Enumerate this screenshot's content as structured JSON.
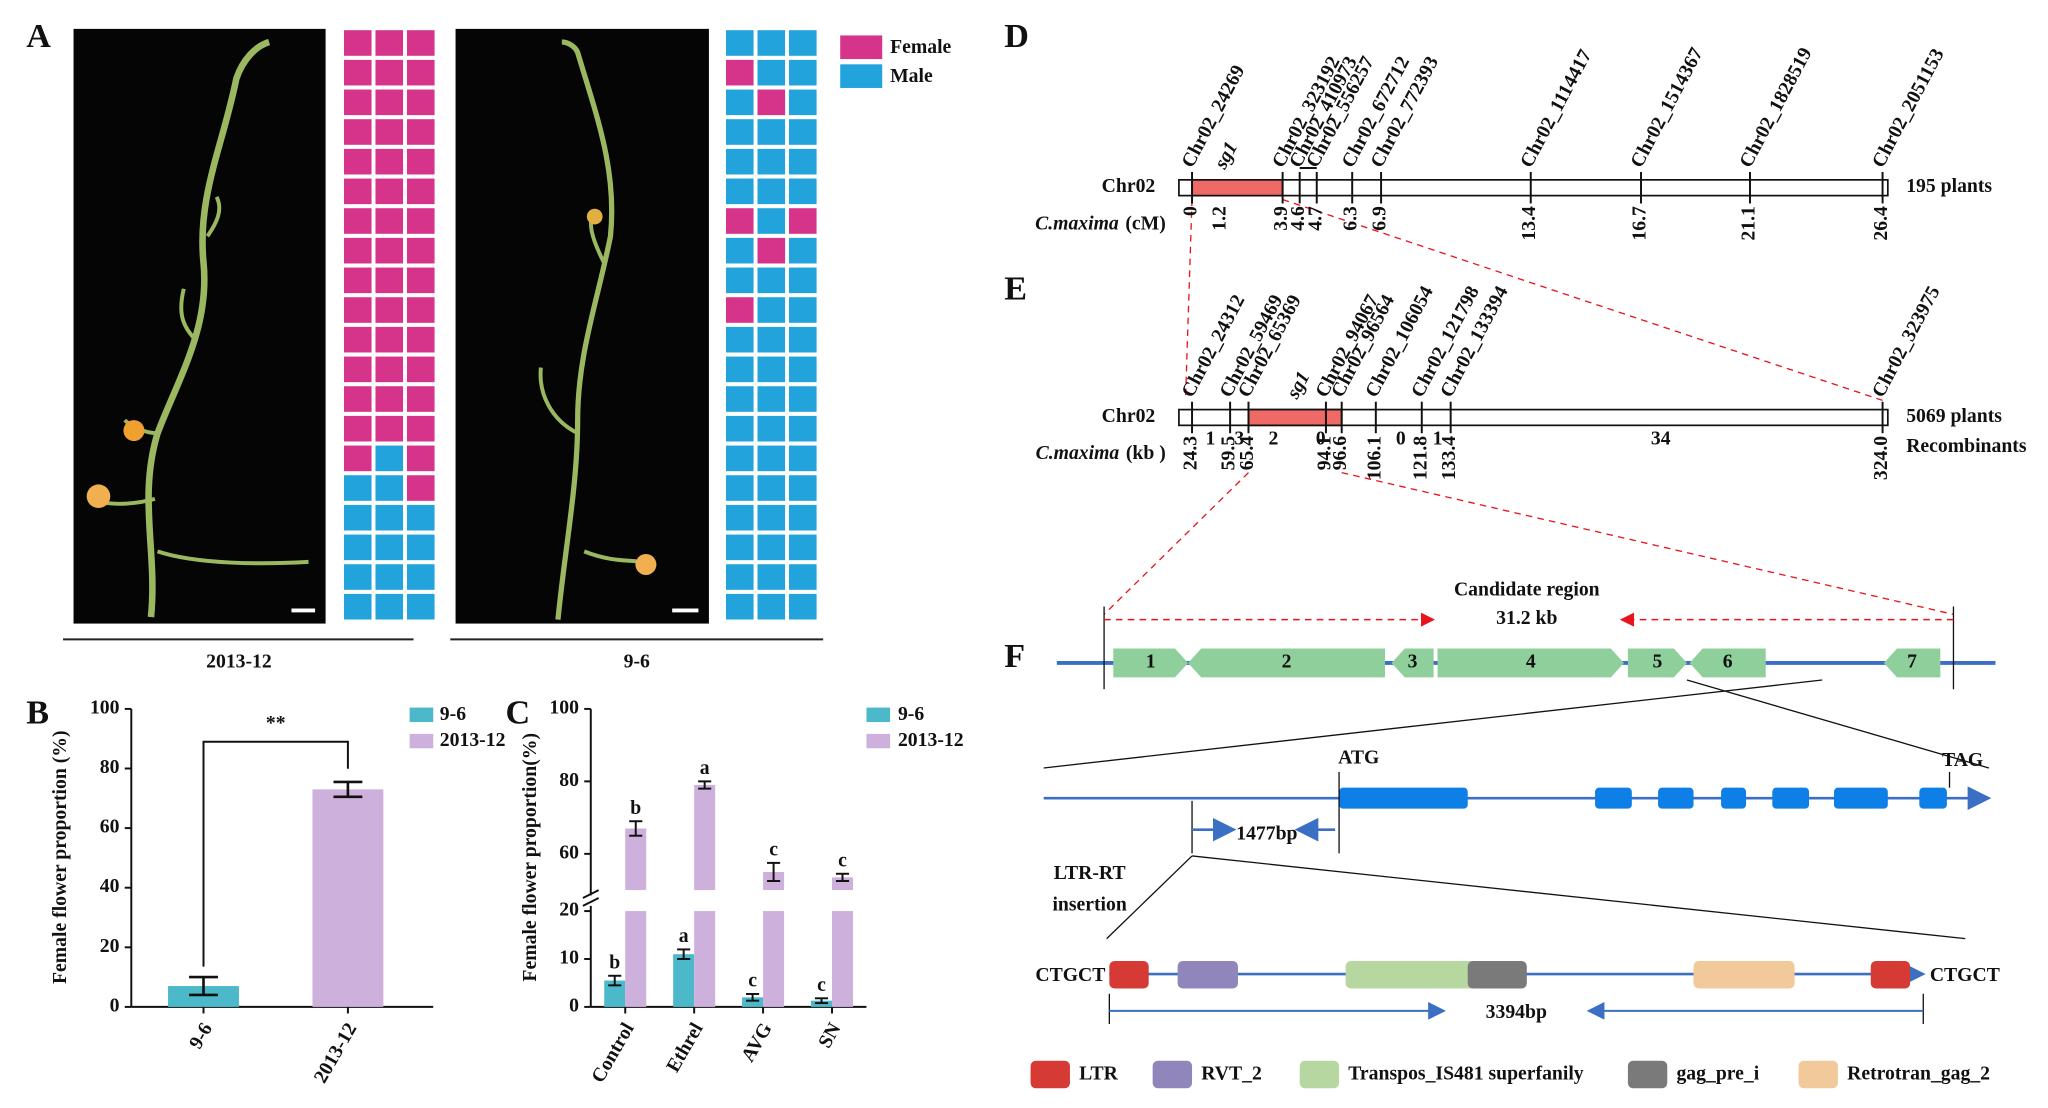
{
  "panel_labels": [
    "A",
    "B",
    "C",
    "D",
    "E",
    "F"
  ],
  "panel_a": {
    "legend": [
      {
        "name": "Female",
        "color": "#d6338a"
      },
      {
        "name": "Male",
        "color": "#22a3dc"
      }
    ],
    "plants": [
      {
        "label": "2013-12",
        "cells": [
          [
            0,
            0,
            0
          ],
          [
            0,
            0,
            0
          ],
          [
            0,
            0,
            0
          ],
          [
            0,
            0,
            0
          ],
          [
            0,
            0,
            0
          ],
          [
            0,
            0,
            0
          ],
          [
            0,
            0,
            0
          ],
          [
            0,
            0,
            0
          ],
          [
            0,
            0,
            0
          ],
          [
            0,
            0,
            0
          ],
          [
            0,
            0,
            0
          ],
          [
            0,
            0,
            0
          ],
          [
            0,
            0,
            0
          ],
          [
            0,
            0,
            0
          ],
          [
            0,
            1,
            0
          ],
          [
            1,
            1,
            0
          ],
          [
            1,
            1,
            1
          ],
          [
            1,
            1,
            1
          ],
          [
            1,
            1,
            1
          ],
          [
            1,
            1,
            1
          ]
        ]
      },
      {
        "label": "9-6",
        "cells": [
          [
            1,
            1,
            1
          ],
          [
            0,
            1,
            1
          ],
          [
            1,
            0,
            1
          ],
          [
            1,
            1,
            1
          ],
          [
            1,
            1,
            1
          ],
          [
            1,
            1,
            1
          ],
          [
            0,
            1,
            0
          ],
          [
            1,
            0,
            1
          ],
          [
            1,
            1,
            1
          ],
          [
            0,
            1,
            1
          ],
          [
            1,
            1,
            1
          ],
          [
            1,
            1,
            1
          ],
          [
            1,
            1,
            1
          ],
          [
            1,
            1,
            1
          ],
          [
            1,
            1,
            1
          ],
          [
            1,
            1,
            1
          ],
          [
            1,
            1,
            1
          ],
          [
            1,
            1,
            1
          ],
          [
            1,
            1,
            1
          ],
          [
            1,
            1,
            1
          ]
        ]
      }
    ]
  },
  "chart_data": [
    {
      "type": "bar",
      "ylabel": "Female flower proportion (%)",
      "categories": [
        "9-6",
        "2013-12"
      ],
      "values": [
        7,
        73
      ],
      "errors": [
        3,
        2.5
      ],
      "colors": [
        "#4bb9c9",
        "#cdb0dc"
      ],
      "ylim": [
        0,
        100
      ],
      "yticks": [
        0,
        20,
        40,
        60,
        80,
        100
      ],
      "significance": "**"
    },
    {
      "type": "broken-bar",
      "ylabel": "Female flower proportion(%)",
      "categories": [
        "Control",
        "Ethrel",
        "AVG",
        "SN"
      ],
      "series": [
        {
          "name": "9-6",
          "color": "#4bb9c9",
          "values": [
            5.5,
            11,
            2,
            1.3
          ],
          "errors": [
            1,
            1,
            0.7,
            0.5
          ],
          "letters": [
            "b",
            "a",
            "c",
            "c"
          ]
        },
        {
          "name": "2013-12",
          "color": "#cdb0dc",
          "values": [
            67,
            79,
            55,
            53.5
          ],
          "errors": [
            2,
            1,
            2.5,
            1
          ],
          "letters": [
            "b",
            "a",
            "c",
            "c"
          ]
        }
      ],
      "ylim": [
        0,
        100
      ],
      "y_break": [
        20,
        50
      ],
      "yticks": [
        0,
        10,
        20,
        60,
        80,
        100
      ]
    }
  ],
  "panel_d": {
    "chromosome": "Chr02",
    "species": "C.maxima",
    "unit": "(cM)",
    "population": "195 plants",
    "gene": {
      "name": "sg1",
      "pos": "1.2"
    },
    "markers": [
      {
        "name": "Chr02_24269",
        "pos": "0"
      },
      {
        "name": "Chr02_323192",
        "pos": "3.9"
      },
      {
        "name": "Chr02_410973",
        "pos": "4.6"
      },
      {
        "name": "Chr02_556257",
        "pos": "4.7"
      },
      {
        "name": "Chr02_672712",
        "pos": "6.3"
      },
      {
        "name": "Chr02_772393",
        "pos": "6.9"
      },
      {
        "name": "Chr02_1114417",
        "pos": "13.4"
      },
      {
        "name": "Chr02_1514367",
        "pos": "16.7"
      },
      {
        "name": "Chr02_1828519",
        "pos": "21.1"
      },
      {
        "name": "Chr02_2051153",
        "pos": "26.4"
      }
    ]
  },
  "panel_e": {
    "chromosome": "Chr02",
    "species": "C.maxima",
    "unit": "(kb )",
    "population": "5069 plants",
    "recombinants_label": "Recombinants",
    "gene": "sg1",
    "markers": [
      {
        "name": "Chr02_24312",
        "pos": "24.3"
      },
      {
        "name": "Chr02_59469",
        "pos": "59.5"
      },
      {
        "name": "Chr02_65369",
        "pos": "65.4"
      },
      {
        "name": "Chr02_94067",
        "pos": "94.1"
      },
      {
        "name": "Chr02_96564",
        "pos": "96.6"
      },
      {
        "name": "Chr02_106054",
        "pos": "106.1"
      },
      {
        "name": "Chr02_121798",
        "pos": "121.8"
      },
      {
        "name": "Chr02_133394",
        "pos": "133.4"
      },
      {
        "name": "Chr02_323975",
        "pos": "324.0"
      }
    ],
    "recombinants": [
      1,
      3,
      2,
      0,
      null,
      0,
      1,
      34
    ]
  },
  "panel_f": {
    "region": "Candidate region",
    "size": "31.2 kb",
    "genes": [
      "1",
      "2",
      "3",
      "4",
      "5",
      "6",
      "7"
    ],
    "start": "ATG",
    "stop": "TAG",
    "insertion_size": "1477bp",
    "insertion_label": [
      "LTR-RT",
      "insertion"
    ],
    "tsd": [
      "CTGCT",
      "CTGCT"
    ],
    "te_size": "3394bp",
    "domains": [
      {
        "name": "LTR",
        "color": "#d63a35"
      },
      {
        "name": "RVT_2",
        "color": "#9186bc"
      },
      {
        "name": "Transpos_IS481 superfanily",
        "color": "#b6d7a0"
      },
      {
        "name": "gag_pre_i",
        "color": "#7a7a7a"
      },
      {
        "name": "Retrotran_gag_2",
        "color": "#f2c99b"
      }
    ]
  }
}
